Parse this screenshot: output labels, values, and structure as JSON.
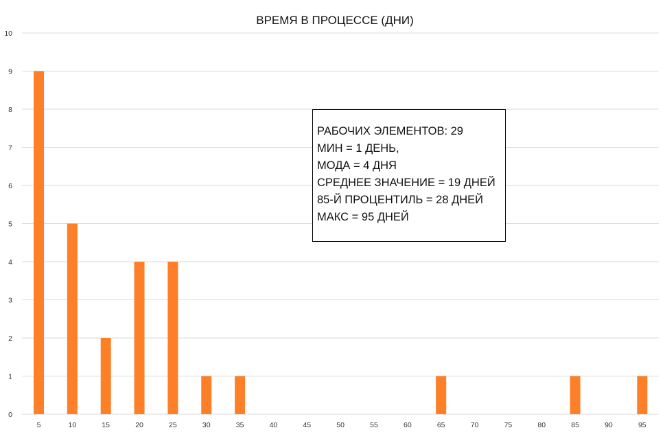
{
  "chart_data": {
    "type": "bar",
    "title": "ВРЕМЯ В ПРОЦЕССЕ (ДНИ)",
    "categories": [
      "5",
      "10",
      "15",
      "20",
      "25",
      "30",
      "35",
      "40",
      "45",
      "50",
      "55",
      "60",
      "65",
      "70",
      "75",
      "80",
      "85",
      "90",
      "95"
    ],
    "values": [
      9,
      5,
      2,
      4,
      4,
      1,
      1,
      0,
      0,
      0,
      0,
      0,
      1,
      0,
      0,
      0,
      1,
      0,
      1
    ],
    "ylim": [
      0,
      10
    ],
    "yticks": [
      "0",
      "1",
      "2",
      "3",
      "4",
      "5",
      "6",
      "7",
      "8",
      "9",
      "10"
    ],
    "xlabel": "",
    "ylabel": "",
    "grid": true,
    "bar_color": "#fd7f28",
    "annotation": [
      "РАБОЧИХ ЭЛЕМЕНТОВ: 29",
      "МИН = 1 ДЕНЬ,",
      "МОДА = 4 ДНЯ",
      "СРЕДНЕЕ ЗНАЧЕНИЕ = 19 ДНЕЙ",
      "85-Й ПРОЦЕНТИЛЬ = 28 ДНЕЙ",
      "МАКС = 95 ДНЕЙ"
    ]
  }
}
